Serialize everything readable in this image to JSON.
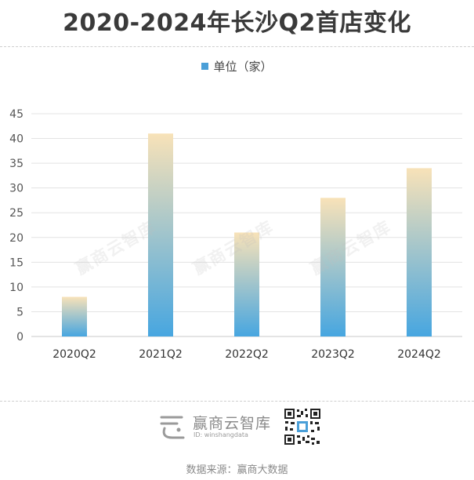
{
  "title": "2020-2024年长沙Q2首店变化",
  "legend": {
    "label": "单位（家）",
    "color": "#4a9fd8"
  },
  "watermark": "赢商云智库",
  "brand": {
    "name": "赢商云智库",
    "id": "ID: winshangdata"
  },
  "source": "数据来源：赢商大数据",
  "chart_data": {
    "type": "bar",
    "title": "2020-2024年长沙Q2首店变化",
    "categories": [
      "2020Q2",
      "2021Q2",
      "2022Q2",
      "2023Q2",
      "2024Q2"
    ],
    "series": [
      {
        "name": "单位（家）",
        "values": [
          8,
          41,
          21,
          28,
          34
        ]
      }
    ],
    "ylim": [
      0,
      45
    ],
    "yticks": [
      0,
      5,
      10,
      15,
      20,
      25,
      30,
      35,
      40,
      45
    ],
    "grid": true,
    "legend_position": "top-center",
    "gradient": {
      "top": "#f8e2b8",
      "bottom": "#47a6e0"
    }
  }
}
